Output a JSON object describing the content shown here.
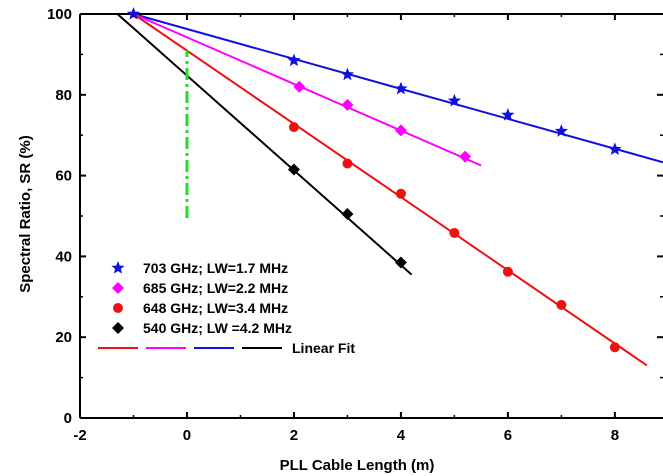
{
  "chart_data": {
    "type": "scatter",
    "xlabel": "PLL Cable Length (m)",
    "ylabel": "Spectral Ratio, SR (%)",
    "xlim": [
      -2,
      8.9
    ],
    "ylim": [
      0,
      100
    ],
    "xticks": [
      "-2",
      "0",
      "2",
      "4",
      "6",
      "8"
    ],
    "yticks": [
      "0",
      "20",
      "40",
      "60",
      "80",
      "100"
    ],
    "grid": false,
    "legend_position": "bottom-left",
    "series": [
      {
        "name": "703 GHz;  LW=1.7 MHz",
        "marker": "star",
        "color": "#1010e0",
        "points": [
          [
            -1,
            100
          ],
          [
            2,
            88.5
          ],
          [
            3,
            85
          ],
          [
            4,
            81.5
          ],
          [
            5,
            78.5
          ],
          [
            6,
            75
          ],
          [
            7,
            71
          ],
          [
            8,
            66.5
          ]
        ],
        "fit": {
          "x": [
            -1,
            8.9
          ],
          "y": [
            100,
            63.3
          ]
        }
      },
      {
        "name": "685 GHz;  LW=2.2 MHz",
        "marker": "diamond",
        "color": "#ff00ff",
        "points": [
          [
            2.1,
            82
          ],
          [
            3,
            77.5
          ],
          [
            4,
            71.2
          ],
          [
            5.2,
            64.7
          ]
        ],
        "fit": {
          "x": [
            -1,
            5.5
          ],
          "y": [
            100,
            62.5
          ]
        }
      },
      {
        "name": "648 GHz;  LW=3.4 MHz",
        "marker": "circle",
        "color": "#ee1111",
        "points": [
          [
            2,
            72
          ],
          [
            3,
            63
          ],
          [
            4,
            55.5
          ],
          [
            5,
            45.8
          ],
          [
            6,
            36.2
          ],
          [
            7,
            28
          ],
          [
            8,
            17.5
          ]
        ],
        "fit": {
          "x": [
            -1,
            8.6
          ],
          "y": [
            100,
            13
          ]
        }
      },
      {
        "name": "540 GHz;  LW =4.2 MHz",
        "marker": "diamond",
        "color": "#000000",
        "points": [
          [
            2,
            61.5
          ],
          [
            3,
            50.5
          ],
          [
            4,
            38.5
          ]
        ],
        "fit": {
          "x": [
            -1.3,
            4.2
          ],
          "y": [
            100,
            35.5
          ]
        }
      }
    ],
    "fit_legend_label": "Linear Fit",
    "fit_legend_colors": [
      "#ee1111",
      "#ff00ff",
      "#1010e0",
      "#000000"
    ],
    "annotations": [
      {
        "type": "vertical-dashdot-line",
        "x": 0,
        "y_range": [
          49.5,
          91
        ],
        "color": "#22dd22"
      }
    ]
  }
}
